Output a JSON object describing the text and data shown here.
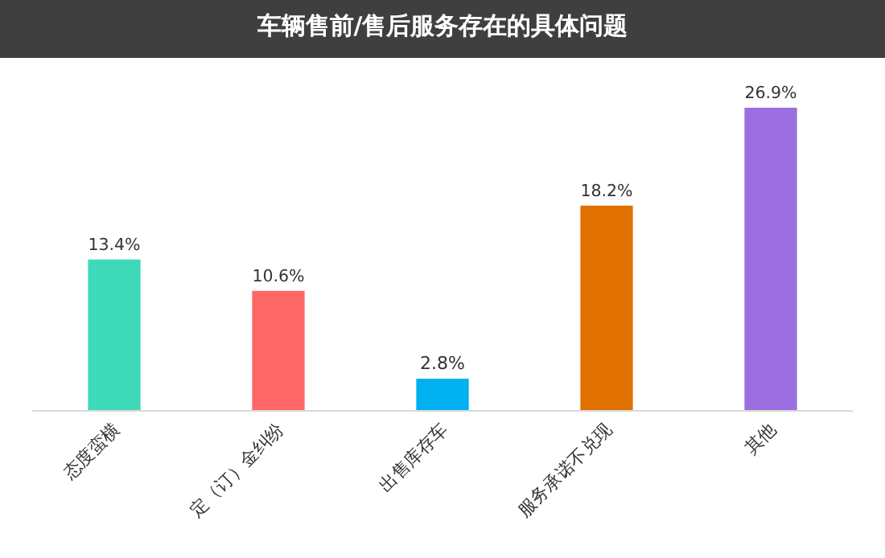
{
  "chart_data": {
    "type": "bar",
    "title": "车辆售前/售后服务存在的具体问题",
    "categories": [
      "态度蛮横",
      "定（订）金纠纷",
      "出售库存车",
      "服务承诺不兑现",
      "其他"
    ],
    "values": [
      13.4,
      10.6,
      2.8,
      18.2,
      26.9
    ],
    "colors": [
      "#3dd9b8",
      "#ff6666",
      "#00b0f0",
      "#e07000",
      "#9b6fe0"
    ],
    "value_labels": [
      "13.4%",
      "10.6%",
      "2.8%",
      "18.2%",
      "26.9%"
    ]
  }
}
